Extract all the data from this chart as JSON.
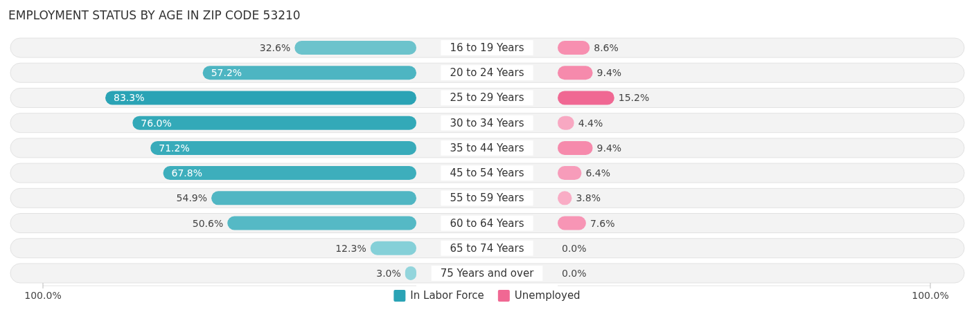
{
  "chart_data": [
    {
      "type": "bar",
      "orientation": "horizontal",
      "title": "EMPLOYMENT STATUS BY AGE IN ZIP CODE 53210",
      "categories": [
        "16 to 19 Years",
        "20 to 24 Years",
        "25 to 29 Years",
        "30 to 34 Years",
        "35 to 44 Years",
        "45 to 54 Years",
        "55 to 59 Years",
        "60 to 64 Years",
        "65 to 74 Years",
        "75 Years and over"
      ],
      "series": [
        {
          "name": "In Labor Force",
          "color": "#2aa3b5",
          "colors": [
            "#6cc3cc",
            "#4db5c2",
            "#2aa3b5",
            "#33a9b8",
            "#38abba",
            "#3daebc",
            "#50b6c3",
            "#55b9c5",
            "#85d0d8",
            "#93d5dc"
          ],
          "values": [
            32.6,
            57.2,
            83.3,
            76.0,
            71.2,
            67.8,
            54.9,
            50.6,
            12.3,
            3.0
          ]
        }
      ],
      "xlim": [
        100,
        0
      ],
      "xticks": [
        {
          "value": 100,
          "label": "100.0%"
        }
      ],
      "value_labels": [
        "32.6%",
        "57.2%",
        "83.3%",
        "76.0%",
        "71.2%",
        "67.8%",
        "54.9%",
        "50.6%",
        "12.3%",
        "3.0%"
      ],
      "legend": "bottom"
    },
    {
      "type": "bar",
      "orientation": "horizontal",
      "categories": [
        "16 to 19 Years",
        "20 to 24 Years",
        "25 to 29 Years",
        "30 to 34 Years",
        "35 to 44 Years",
        "45 to 54 Years",
        "55 to 59 Years",
        "60 to 64 Years",
        "65 to 74 Years",
        "75 Years and over"
      ],
      "series": [
        {
          "name": "Unemployed",
          "color": "#f06893",
          "colors": [
            "#f78fb0",
            "#f68aac",
            "#f06893",
            "#f8a8c2",
            "#f68aac",
            "#f79cba",
            "#f9acc5",
            "#f795b5",
            "#fab6cc",
            "#fab6cc"
          ],
          "values": [
            8.6,
            9.4,
            15.2,
            4.4,
            9.4,
            6.4,
            3.8,
            7.6,
            0.0,
            0.0
          ]
        }
      ],
      "xlim": [
        0,
        100
      ],
      "xticks": [
        {
          "value": 100,
          "label": "100.0%"
        }
      ],
      "value_labels": [
        "8.6%",
        "9.4%",
        "15.2%",
        "4.4%",
        "9.4%",
        "6.4%",
        "3.8%",
        "7.6%",
        "0.0%",
        "0.0%"
      ],
      "tick_labels": "x",
      "legend": "bottom"
    }
  ]
}
